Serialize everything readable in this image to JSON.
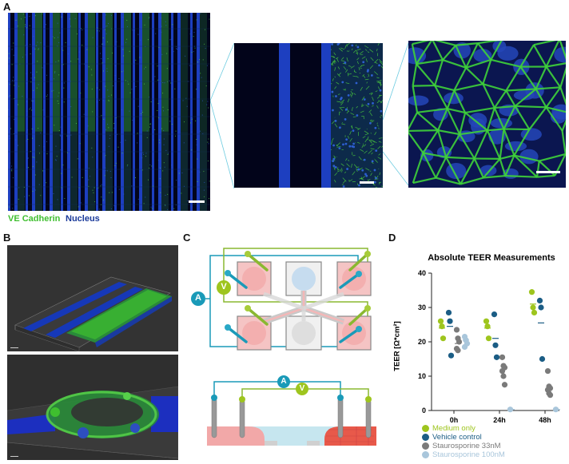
{
  "panels": {
    "a": "A",
    "b": "B",
    "c": "C",
    "d": "D"
  },
  "panel_a": {
    "legend_ve": "VE Cadherin",
    "legend_nucleus": "Nucleus",
    "colors": {
      "ve": "#3fbf2f",
      "nucleus": "#1a3a9a"
    }
  },
  "panel_c": {
    "a_label": "A",
    "v_label": "V"
  },
  "chart_data": {
    "type": "scatter",
    "title": "Absolute TEER Measurements",
    "ylabel": "TEER [Ω*cm²]",
    "categories": [
      "0h",
      "24h",
      "48h"
    ],
    "ylim": [
      0,
      40
    ],
    "yticks": [
      "0",
      "10",
      "20",
      "30",
      "40"
    ],
    "series": [
      {
        "name": "Medium only",
        "color": "#9ec51e",
        "points": {
          "0h": [
            26,
            24.5,
            21
          ],
          "24h": [
            26,
            24.5,
            21
          ],
          "48h": [
            34.5,
            30,
            28.5
          ]
        },
        "mean": {
          "0h": 24,
          "24h": 24,
          "48h": 31
        }
      },
      {
        "name": "Vehicle control",
        "color": "#1b5d85",
        "points": {
          "0h": [
            28.5,
            26,
            16
          ],
          "24h": [
            28,
            19,
            15.5
          ],
          "48h": [
            32,
            30,
            15
          ]
        },
        "mean": {
          "0h": 24.5,
          "24h": 21,
          "48h": 25.5
        }
      },
      {
        "name": "Staurosporine 33nM",
        "color": "#7a7a7a",
        "points": {
          "0h": [
            23.5,
            21,
            20,
            18,
            17.5
          ],
          "24h": [
            15.5,
            13,
            12.5,
            11.5,
            10,
            7.5
          ],
          "48h": [
            11.5,
            7,
            6.5,
            6,
            5,
            4.5
          ]
        },
        "mean": {
          "0h": 19.5,
          "24h": 12,
          "48h": 6.5
        }
      },
      {
        "name": "Staurosporine 100nM",
        "color": "#a9c6db",
        "points": {
          "0h": [
            21.5,
            20.5,
            19.5,
            18.5
          ],
          "24h": [
            0.3
          ],
          "48h": [
            0.3
          ]
        },
        "mean": {
          "0h": 20.5,
          "24h": 0.3,
          "48h": 0.3
        }
      }
    ],
    "legend_position": "bottom-left"
  }
}
